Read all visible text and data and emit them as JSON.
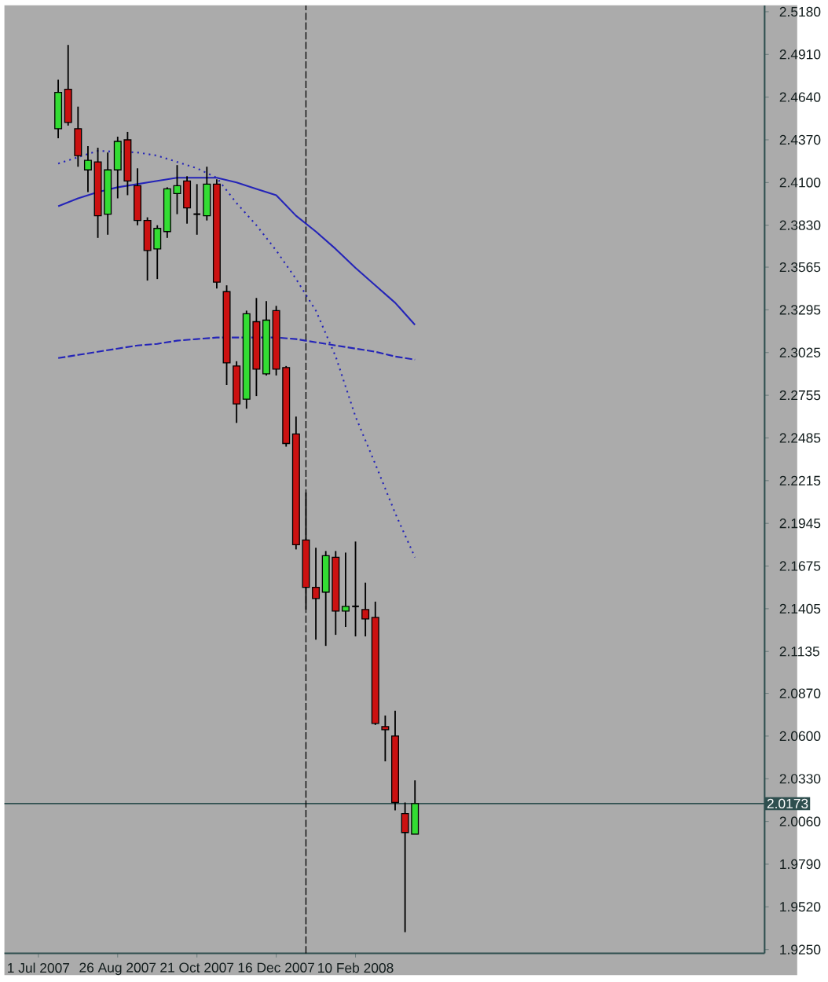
{
  "chart_data": {
    "type": "candlestick",
    "x": [
      "2007-07-15",
      "2007-07-22",
      "2007-07-29",
      "2007-08-05",
      "2007-08-12",
      "2007-08-19",
      "2007-08-26",
      "2007-09-02",
      "2007-09-09",
      "2007-09-16",
      "2007-09-23",
      "2007-09-30",
      "2007-10-07",
      "2007-10-14",
      "2007-10-21",
      "2007-10-28",
      "2007-11-04",
      "2007-11-11",
      "2007-11-18",
      "2007-11-25",
      "2007-12-02",
      "2007-12-09",
      "2007-12-16",
      "2007-12-23",
      "2007-12-30",
      "2008-01-06",
      "2008-01-13",
      "2008-01-20",
      "2008-01-27",
      "2008-02-03",
      "2008-02-10",
      "2008-02-17",
      "2008-02-24",
      "2008-03-02",
      "2008-03-09",
      "2008-03-16",
      "2008-03-23"
    ],
    "ohlc": [
      [
        2.444,
        2.475,
        2.438,
        2.467
      ],
      [
        2.469,
        2.497,
        2.446,
        2.448
      ],
      [
        2.444,
        2.458,
        2.42,
        2.427
      ],
      [
        2.418,
        2.433,
        2.404,
        2.424
      ],
      [
        2.423,
        2.432,
        2.375,
        2.389
      ],
      [
        2.39,
        2.429,
        2.377,
        2.418
      ],
      [
        2.418,
        2.439,
        2.4,
        2.436
      ],
      [
        2.437,
        2.442,
        2.402,
        2.411
      ],
      [
        2.408,
        2.419,
        2.383,
        2.386
      ],
      [
        2.386,
        2.388,
        2.348,
        2.367
      ],
      [
        2.368,
        2.383,
        2.349,
        2.381
      ],
      [
        2.379,
        2.407,
        2.375,
        2.406
      ],
      [
        2.403,
        2.421,
        2.39,
        2.408
      ],
      [
        2.411,
        2.414,
        2.384,
        2.394
      ],
      [
        2.39,
        2.409,
        2.377,
        2.39
      ],
      [
        2.389,
        2.42,
        2.386,
        2.409
      ],
      [
        2.409,
        2.412,
        2.343,
        2.347
      ],
      [
        2.341,
        2.345,
        2.282,
        2.296
      ],
      [
        2.294,
        2.297,
        2.258,
        2.27
      ],
      [
        2.273,
        2.329,
        2.267,
        2.327
      ],
      [
        2.322,
        2.337,
        2.275,
        2.292
      ],
      [
        2.289,
        2.335,
        2.288,
        2.323
      ],
      [
        2.329,
        2.332,
        2.288,
        2.292
      ],
      [
        2.293,
        2.294,
        2.243,
        2.245
      ],
      [
        2.251,
        2.262,
        2.178,
        2.181
      ],
      [
        2.184,
        2.214,
        2.14,
        2.154
      ],
      [
        2.154,
        2.179,
        2.121,
        2.147
      ],
      [
        2.151,
        2.177,
        2.117,
        2.174
      ],
      [
        2.173,
        2.177,
        2.124,
        2.139
      ],
      [
        2.139,
        2.176,
        2.129,
        2.142
      ],
      [
        2.142,
        2.183,
        2.123,
        2.142
      ],
      [
        2.14,
        2.157,
        2.123,
        2.134
      ],
      [
        2.135,
        2.145,
        2.067,
        2.068
      ],
      [
        2.066,
        2.073,
        2.044,
        2.064
      ],
      [
        2.06,
        2.076,
        2.013,
        2.018
      ],
      [
        2.011,
        2.018,
        1.936,
        1.999
      ],
      [
        1.998,
        2.032,
        1.998,
        2.0173
      ]
    ],
    "colors": [
      "#33dd33",
      "#cc1111",
      "#cc1111",
      "#33dd33",
      "#cc1111",
      "#33dd33",
      "#33dd33",
      "#cc1111",
      "#cc1111",
      "#cc1111",
      "#33dd33",
      "#33dd33",
      "#33dd33",
      "#cc1111",
      "#000000",
      "#33dd33",
      "#cc1111",
      "#cc1111",
      "#cc1111",
      "#33dd33",
      "#cc1111",
      "#33dd33",
      "#cc1111",
      "#cc1111",
      "#cc1111",
      "#cc1111",
      "#cc1111",
      "#33dd33",
      "#cc1111",
      "#33dd33",
      "#000000",
      "#cc1111",
      "#cc1111",
      "#cc1111",
      "#cc1111",
      "#cc1111",
      "#33dd33"
    ],
    "series": [
      {
        "type": "line",
        "color": "#2424b8",
        "line_style": "solid",
        "x": [
          "2007-07-15",
          "2007-07-29",
          "2007-08-12",
          "2007-08-26",
          "2007-09-09",
          "2007-09-23",
          "2007-10-07",
          "2007-10-21",
          "2007-11-04",
          "2007-11-18",
          "2007-12-02",
          "2007-12-16",
          "2007-12-30",
          "2008-01-13",
          "2008-01-27",
          "2008-02-10",
          "2008-02-24",
          "2008-03-09",
          "2008-03-23"
        ],
        "values": [
          2.395,
          2.4,
          2.404,
          2.407,
          2.409,
          2.411,
          2.413,
          2.413,
          2.413,
          2.41,
          2.406,
          2.402,
          2.389,
          2.379,
          2.368,
          2.356,
          2.345,
          2.334,
          2.32
        ]
      },
      {
        "type": "line",
        "color": "#2424b8",
        "line_style": "dotted",
        "x": [
          "2007-07-15",
          "2007-07-29",
          "2007-08-12",
          "2007-08-26",
          "2007-09-09",
          "2007-09-23",
          "2007-10-07",
          "2007-10-21",
          "2007-11-04",
          "2007-11-18",
          "2007-12-02",
          "2007-12-16",
          "2007-12-30",
          "2008-01-13",
          "2008-01-27",
          "2008-02-10",
          "2008-02-24",
          "2008-03-09",
          "2008-03-23"
        ],
        "values": [
          2.422,
          2.426,
          2.43,
          null,
          2.429,
          2.427,
          2.423,
          2.419,
          2.413,
          2.397,
          2.383,
          2.367,
          2.349,
          2.329,
          2.3,
          2.262,
          2.232,
          2.201,
          2.173
        ]
      },
      {
        "type": "line",
        "color": "#2424b8",
        "line_style": "dashed",
        "x": [
          "2007-07-15",
          "2007-07-29",
          "2007-08-12",
          "2007-08-26",
          "2007-09-09",
          "2007-09-23",
          "2007-10-07",
          "2007-10-21",
          "2007-11-04",
          "2007-11-18",
          "2007-12-02",
          "2007-12-16",
          "2007-12-30",
          "2008-01-13",
          "2008-01-27",
          "2008-02-10",
          "2008-02-24",
          "2008-03-09",
          "2008-03-23"
        ],
        "values": [
          2.299,
          2.301,
          2.303,
          2.305,
          2.307,
          2.308,
          2.31,
          2.311,
          2.312,
          2.312,
          2.312,
          2.312,
          2.311,
          2.309,
          2.307,
          2.305,
          2.303,
          2.3,
          2.298
        ]
      }
    ],
    "xlim": [
      "2007-06-07",
      "2008-11-25"
    ],
    "xticks": [
      {
        "value": "2007-07-01",
        "label": "1 Jul 2007"
      },
      {
        "value": "2007-08-26",
        "label": "26 Aug 2007"
      },
      {
        "value": "2007-10-21",
        "label": "21 Oct 2007"
      },
      {
        "value": "2007-12-16",
        "label": "16 Dec 2007"
      },
      {
        "value": "2008-02-10",
        "label": "10 Feb 2008"
      }
    ],
    "ylim": [
      1.9226,
      2.522
    ],
    "yticks": [
      {
        "value": 2.518,
        "label": "2.5180"
      },
      {
        "value": 2.491,
        "label": "2.4910"
      },
      {
        "value": 2.464,
        "label": "2.4640"
      },
      {
        "value": 2.437,
        "label": "2.4370"
      },
      {
        "value": 2.41,
        "label": "2.4100"
      },
      {
        "value": 2.383,
        "label": "2.3830"
      },
      {
        "value": 2.3565,
        "label": "2.3565"
      },
      {
        "value": 2.3295,
        "label": "2.3295"
      },
      {
        "value": 2.3025,
        "label": "2.3025"
      },
      {
        "value": 2.2755,
        "label": "2.2755"
      },
      {
        "value": 2.2485,
        "label": "2.2485"
      },
      {
        "value": 2.2215,
        "label": "2.2215"
      },
      {
        "value": 2.1945,
        "label": "2.1945"
      },
      {
        "value": 2.1675,
        "label": "2.1675"
      },
      {
        "value": 2.1405,
        "label": "2.1405"
      },
      {
        "value": 2.1135,
        "label": "2.1135"
      },
      {
        "value": 2.087,
        "label": "2.0870"
      },
      {
        "value": 2.06,
        "label": "2.0600"
      },
      {
        "value": 2.033,
        "label": "2.0330"
      },
      {
        "value": 2.006,
        "label": "2.0060"
      },
      {
        "value": 1.979,
        "label": "1.9790"
      },
      {
        "value": 1.952,
        "label": "1.9520"
      },
      {
        "value": 1.925,
        "label": "1.9250"
      }
    ],
    "ref_lines": [
      {
        "axis": "y",
        "value": 2.0173,
        "label": "2.0173",
        "color": "#2f4f4f"
      },
      {
        "axis": "x",
        "value": "2008-01-06",
        "color": "#000000",
        "line_style": "dashed"
      }
    ]
  }
}
